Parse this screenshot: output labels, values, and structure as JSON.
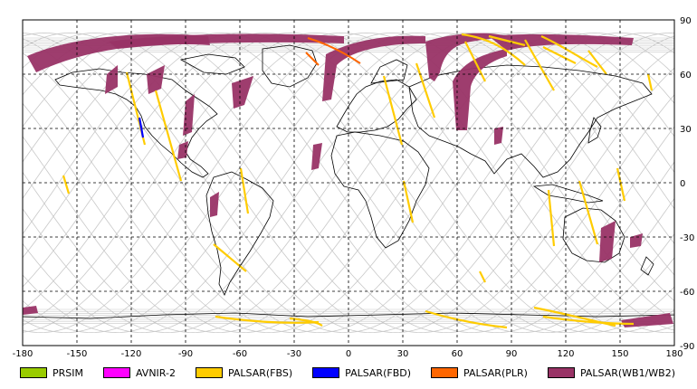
{
  "map": {
    "x_ticks": [
      "-180",
      "-150",
      "-120",
      "-90",
      "-60",
      "-30",
      "0",
      "30",
      "60",
      "90",
      "120",
      "150",
      "180"
    ],
    "y_ticks": [
      "90",
      "60",
      "30",
      "0",
      "-30",
      "-60",
      "-90"
    ],
    "lon_range": [
      -180,
      180
    ],
    "lat_range": [
      -90,
      90
    ],
    "grid": "dashed",
    "colors": {
      "prsim": "#99cc00",
      "avnir2": "#ff00ff",
      "palsar_fbs": "#ffcc00",
      "palsar_fbd": "#0000ff",
      "palsar_plr": "#ff6600",
      "palsar_wb": "#993366",
      "orbit": "#c8c8c8",
      "coast": "#000000"
    }
  },
  "legend": [
    {
      "label": "PRSIM",
      "color": "#99cc00"
    },
    {
      "label": "AVNIR-2",
      "color": "#ff00ff"
    },
    {
      "label": "PALSAR(FBS)",
      "color": "#ffcc00"
    },
    {
      "label": "PALSAR(FBD)",
      "color": "#0000ff"
    },
    {
      "label": "PALSAR(PLR)",
      "color": "#ff6600"
    },
    {
      "label": "PALSAR(WB1/WB2)",
      "color": "#993366"
    }
  ]
}
